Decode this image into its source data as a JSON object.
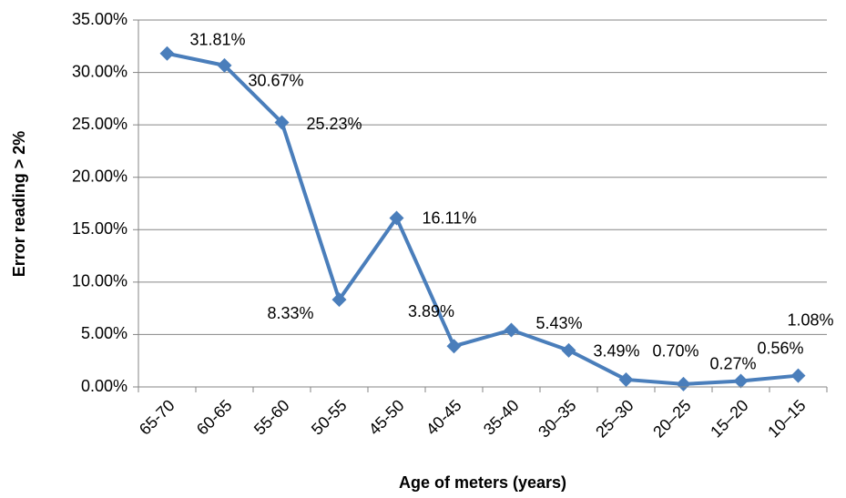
{
  "chart_data": {
    "type": "line",
    "x_label": "Age of meters (years)",
    "y_label": "Error reading > 2%",
    "categories": [
      "65-70",
      "60-65",
      "55-60",
      "50-55",
      "45-50",
      "40-45",
      "35-40",
      "30–35",
      "25–30",
      "20–25",
      "15–20",
      "10–15"
    ],
    "values": [
      31.81,
      30.67,
      25.23,
      8.33,
      16.11,
      3.89,
      5.43,
      3.49,
      0.7,
      0.27,
      0.56,
      1.08
    ],
    "value_labels": [
      "31.81%",
      "30.67%",
      "25.23%",
      "8.33%",
      "16.11%",
      "3.89%",
      "5.43%",
      "3.49%",
      "0.70%",
      "0.27%",
      "0.56%",
      "1.08%"
    ],
    "color": "#4a7ebb",
    "ylim": [
      0,
      35
    ],
    "yticks": [
      {
        "value": 0,
        "label": "0.00%"
      },
      {
        "value": 5,
        "label": "5.00%"
      },
      {
        "value": 10,
        "label": "10.00%"
      },
      {
        "value": 15,
        "label": "15.00%"
      },
      {
        "value": 20,
        "label": "20.00%"
      },
      {
        "value": 25,
        "label": "25.00%"
      },
      {
        "value": 30,
        "label": "30.00%"
      },
      {
        "value": 35,
        "label": "35.00%"
      }
    ],
    "grid": true
  }
}
